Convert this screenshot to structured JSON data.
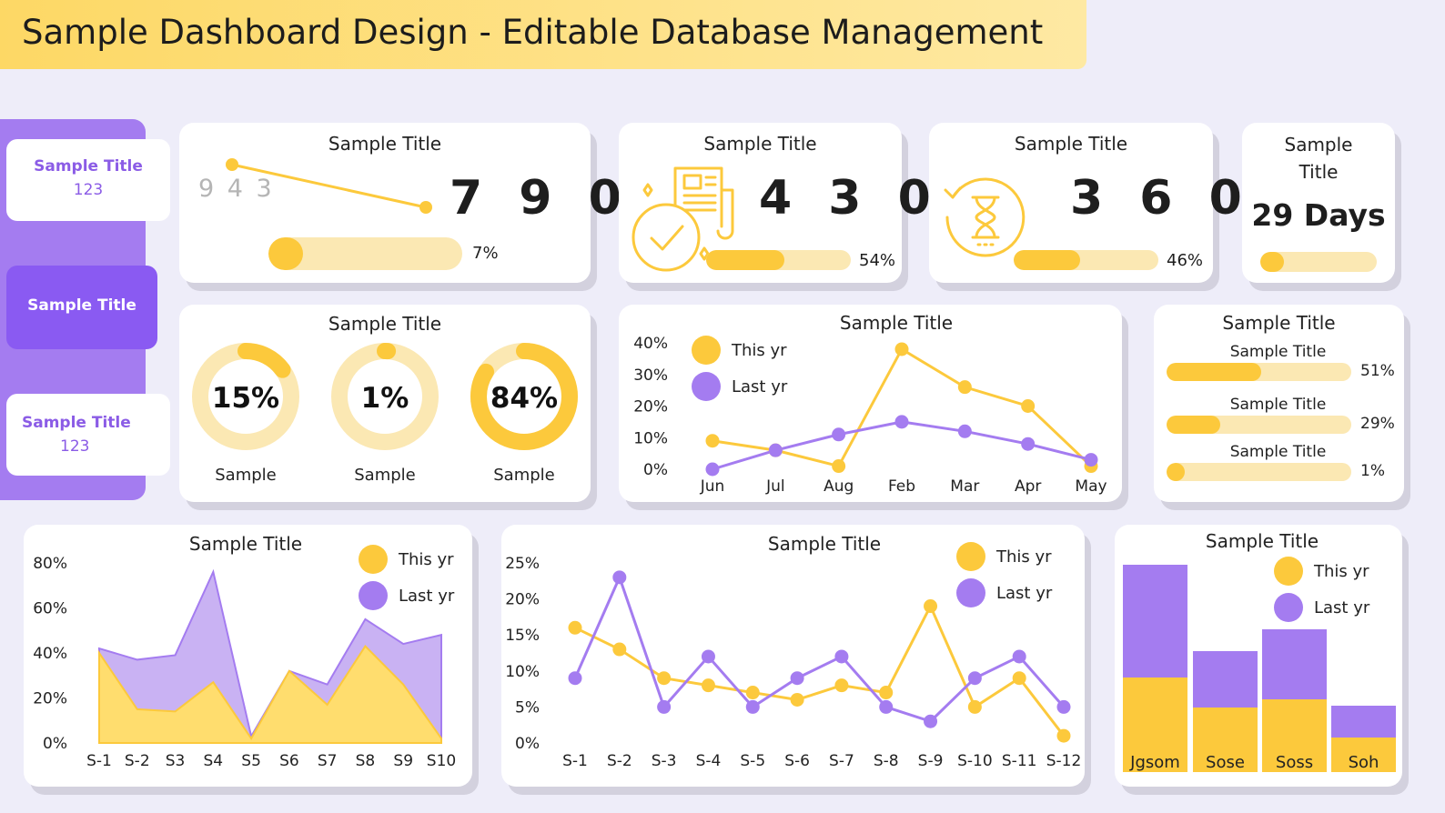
{
  "banner": {
    "title": "Sample Dashboard Design - Editable Database Management"
  },
  "sidebar": {
    "items": [
      {
        "label": "Sample Title",
        "value": "123"
      },
      {
        "label": "Sample Title"
      },
      {
        "label": "Sample Title",
        "value": "123"
      }
    ]
  },
  "kpi1": {
    "title": "Sample Title",
    "start_value": "9 4 3",
    "value": "7 9 0",
    "percent_label": "7%",
    "percent": 7
  },
  "kpi2": {
    "title": "Sample Title",
    "value": "4 3 0",
    "percent_label": "54%",
    "percent": 54,
    "icon": "document-check-icon"
  },
  "kpi3": {
    "title": "Sample Title",
    "value": "3 6 0",
    "percent_label": "46%",
    "percent": 46,
    "icon": "hourglass-icon"
  },
  "kpi4": {
    "title_line1": "Sample",
    "title_line2": "Title",
    "value": "29 Days",
    "percent": 20
  },
  "donuts": {
    "title": "Sample Title",
    "items": [
      {
        "percent": 15,
        "label": "15%",
        "caption": "Sample"
      },
      {
        "percent": 1,
        "label": "1%",
        "caption": "Sample"
      },
      {
        "percent": 84,
        "label": "84%",
        "caption": "Sample"
      }
    ]
  },
  "progress_list": {
    "title": "Sample Title",
    "items": [
      {
        "label": "Sample Title",
        "percent": 51,
        "percent_label": "51%"
      },
      {
        "label": "Sample Title",
        "percent": 29,
        "percent_label": "29%"
      },
      {
        "label": "Sample Title",
        "percent": 1,
        "percent_label": "1%"
      }
    ]
  },
  "colors": {
    "yellow": "#fcc93c",
    "yellow_light": "#fbe8b3",
    "purple": "#a47cf0",
    "purple_dark": "#8a5af2",
    "area_yellow": "#ffdd6e",
    "area_purple": "#c9b2f3"
  },
  "chart_data": [
    {
      "id": "monthly_line",
      "type": "line",
      "title": "Sample Title",
      "categories": [
        "Jun",
        "Jul",
        "Aug",
        "Feb",
        "Mar",
        "Apr",
        "May"
      ],
      "yticks": [
        "0%",
        "10%",
        "20%",
        "30%",
        "40%"
      ],
      "ylim": [
        0,
        40
      ],
      "series": [
        {
          "name": "This yr",
          "values": [
            9,
            6,
            1,
            38,
            26,
            20,
            1
          ]
        },
        {
          "name": "Last yr",
          "values": [
            0,
            6,
            11,
            15,
            12,
            8,
            3
          ]
        }
      ],
      "legend": "top-left"
    },
    {
      "id": "area_chart",
      "type": "area",
      "title": "Sample Title",
      "categories": [
        "S-1",
        "S-2",
        "S3",
        "S4",
        "S5",
        "S6",
        "S7",
        "S8",
        "S9",
        "S10"
      ],
      "yticks": [
        "0%",
        "20%",
        "40%",
        "60%",
        "80%"
      ],
      "ylim": [
        0,
        80
      ],
      "series": [
        {
          "name": "This yr",
          "values": [
            40,
            15,
            14,
            27,
            2,
            32,
            17,
            43,
            26,
            2
          ]
        },
        {
          "name": "Last yr",
          "values": [
            42,
            37,
            39,
            76,
            3,
            32,
            26,
            55,
            44,
            48
          ]
        }
      ],
      "legend": "top-right"
    },
    {
      "id": "s_line",
      "type": "line",
      "title": "Sample Title",
      "categories": [
        "S-1",
        "S-2",
        "S-3",
        "S-4",
        "S-5",
        "S-6",
        "S-7",
        "S-8",
        "S-9",
        "S-10",
        "S-11",
        "S-12"
      ],
      "yticks": [
        "0%",
        "5%",
        "10%",
        "15%",
        "20%",
        "25%"
      ],
      "ylim": [
        0,
        25
      ],
      "series": [
        {
          "name": "This yr",
          "values": [
            16,
            13,
            9,
            8,
            7,
            6,
            8,
            7,
            19,
            5,
            9,
            1
          ]
        },
        {
          "name": "Last yr",
          "values": [
            9,
            23,
            5,
            12,
            5,
            9,
            12,
            5,
            3,
            9,
            12,
            5
          ]
        }
      ],
      "legend": "top-right"
    },
    {
      "id": "stacked_bar",
      "type": "bar",
      "stacked": true,
      "title": "Sample Title",
      "categories": [
        "Jgsom",
        "Sose",
        "Soss",
        "Soh"
      ],
      "series": [
        {
          "name": "This yr",
          "values": [
            104,
            71,
            80,
            38
          ]
        },
        {
          "name": "Last yr",
          "values": [
            124,
            62,
            77,
            35
          ]
        }
      ],
      "legend": "top-right"
    }
  ]
}
